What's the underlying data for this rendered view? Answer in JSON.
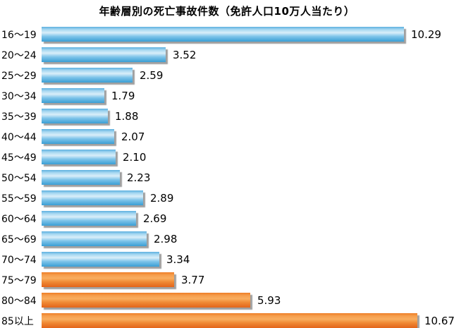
{
  "chart_data": {
    "type": "bar",
    "orientation": "horizontal",
    "title": "年齢層別の死亡事故件数（免許人口10万人当たり）",
    "categories": [
      "16〜19",
      "20〜24",
      "25〜29",
      "30〜34",
      "35〜39",
      "40〜44",
      "45〜49",
      "50〜54",
      "55〜59",
      "60〜64",
      "65〜69",
      "70〜74",
      "75〜79",
      "80〜84",
      "85以上"
    ],
    "values": [
      10.29,
      3.52,
      2.59,
      1.79,
      1.88,
      2.07,
      2.1,
      2.23,
      2.89,
      2.69,
      2.98,
      3.34,
      3.77,
      5.93,
      10.67
    ],
    "value_labels": [
      "10.29",
      "3.52",
      "2.59",
      "1.79",
      "1.88",
      "2.07",
      "2.10",
      "2.23",
      "2.89",
      "2.69",
      "2.98",
      "3.34",
      "3.77",
      "5.93",
      "10.67"
    ],
    "bar_color_keys": [
      "blue",
      "blue",
      "blue",
      "blue",
      "blue",
      "blue",
      "blue",
      "blue",
      "blue",
      "blue",
      "blue",
      "blue",
      "orange",
      "orange",
      "orange"
    ],
    "xlim": [
      0,
      10.67
    ],
    "grid": false,
    "axis_ticks": "none",
    "value_label_position": "end-of-bar"
  },
  "colors": {
    "blue_gradient": [
      "#5cb0df",
      "#a6d7f1",
      "#d9eef9",
      "#7ec4e9",
      "#3a9ed4"
    ],
    "orange_gradient": [
      "#ee7d26",
      "#f59d4c",
      "#f9ae60",
      "#f08a35",
      "#e2641a"
    ],
    "shadow": "#9a9a9a",
    "text": "#000000",
    "background": "#ffffff"
  }
}
